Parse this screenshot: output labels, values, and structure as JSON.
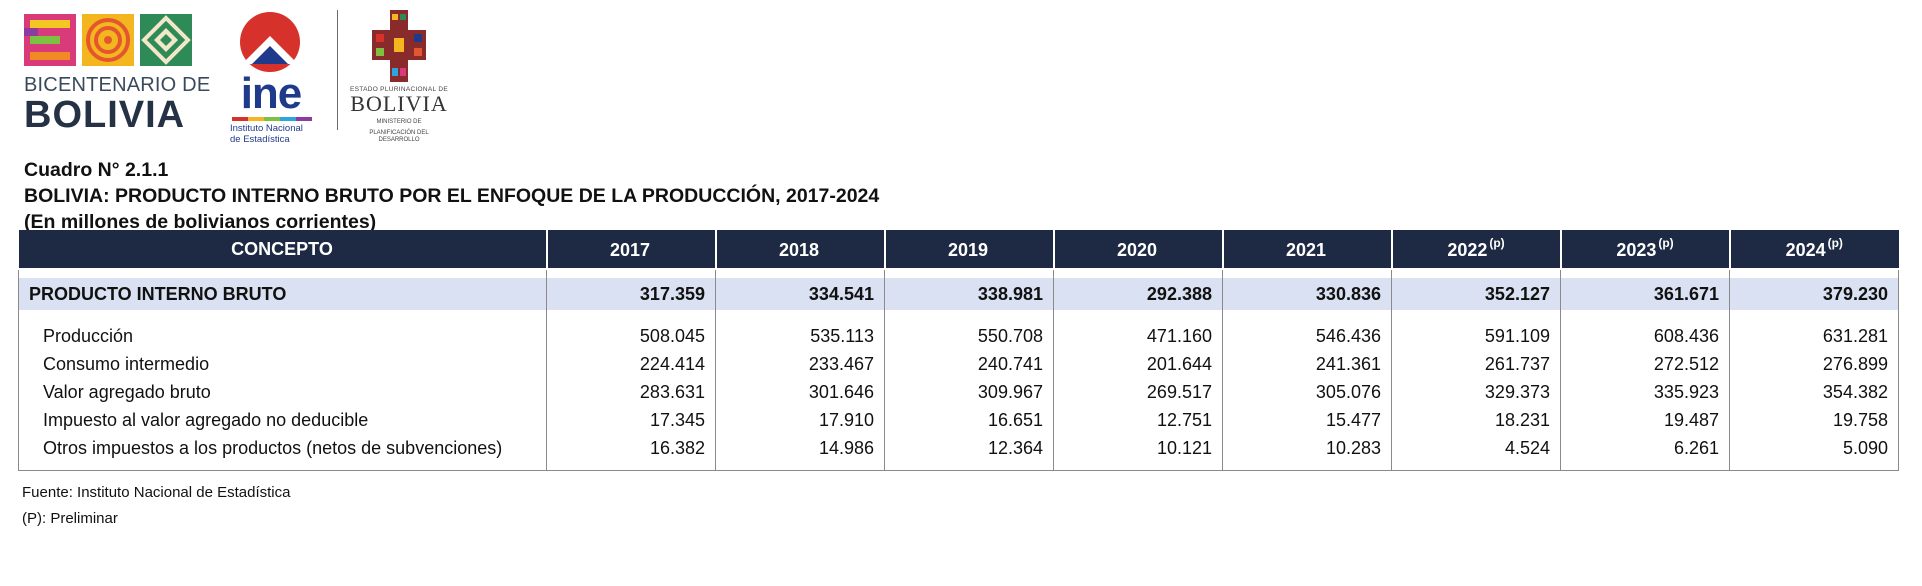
{
  "logos": {
    "bicentenario": {
      "line1": "BICENTENARIO DE",
      "line2": "BOLIVIA"
    },
    "ine": {
      "word": "ine",
      "sub1": "Instituto Nacional",
      "sub2": "de Estadística"
    },
    "estado": {
      "sup": "ESTADO PLURINACIONAL DE",
      "name": "BOLIVIA",
      "min1": "MINISTERIO DE",
      "min2": "PLANIFICACIÓN DEL DESARROLLO"
    }
  },
  "titles": {
    "number": "Cuadro N° 2.1.1",
    "main": "BOLIVIA: PRODUCTO INTERNO BRUTO POR EL ENFOQUE DE LA PRODUCCIÓN, 2017-2024",
    "units": "(En millones de bolivianos corrientes)"
  },
  "table": {
    "header_concept": "CONCEPTO",
    "years": [
      {
        "year": "2017",
        "mark": ""
      },
      {
        "year": "2018",
        "mark": ""
      },
      {
        "year": "2019",
        "mark": ""
      },
      {
        "year": "2020",
        "mark": ""
      },
      {
        "year": "2021",
        "mark": ""
      },
      {
        "year": "2022",
        "mark": "(p)"
      },
      {
        "year": "2023",
        "mark": "(p)"
      },
      {
        "year": "2024",
        "mark": "(p)"
      }
    ],
    "total": {
      "label": "PRODUCTO  INTERNO  BRUTO",
      "values": [
        "317.359",
        "334.541",
        "338.981",
        "292.388",
        "330.836",
        "352.127",
        "361.671",
        "379.230"
      ]
    },
    "rows": [
      {
        "label": "Producción",
        "values": [
          "508.045",
          "535.113",
          "550.708",
          "471.160",
          "546.436",
          "591.109",
          "608.436",
          "631.281"
        ]
      },
      {
        "label": "Consumo intermedio",
        "values": [
          "224.414",
          "233.467",
          "240.741",
          "201.644",
          "241.361",
          "261.737",
          "272.512",
          "276.899"
        ]
      },
      {
        "label": "Valor agregado bruto",
        "values": [
          "283.631",
          "301.646",
          "309.967",
          "269.517",
          "305.076",
          "329.373",
          "335.923",
          "354.382"
        ]
      },
      {
        "label": "Impuesto al valor agregado no deducible",
        "values": [
          "17.345",
          "17.910",
          "16.651",
          "12.751",
          "15.477",
          "18.231",
          "19.487",
          "19.758"
        ]
      },
      {
        "label": "Otros impuestos a los productos (netos de subvenciones)",
        "values": [
          "16.382",
          "14.986",
          "12.364",
          "10.121",
          "10.283",
          "4.524",
          "6.261",
          "5.090"
        ]
      }
    ]
  },
  "notes": {
    "source": "Fuente: Instituto Nacional de Estadística",
    "preliminary": "(P): Preliminar"
  },
  "colors": {
    "header_bg": "#1e2a44",
    "total_bg": "#d9e1f2",
    "ine_blue": "#1f3a8a",
    "ine_red": "#d6322b"
  }
}
